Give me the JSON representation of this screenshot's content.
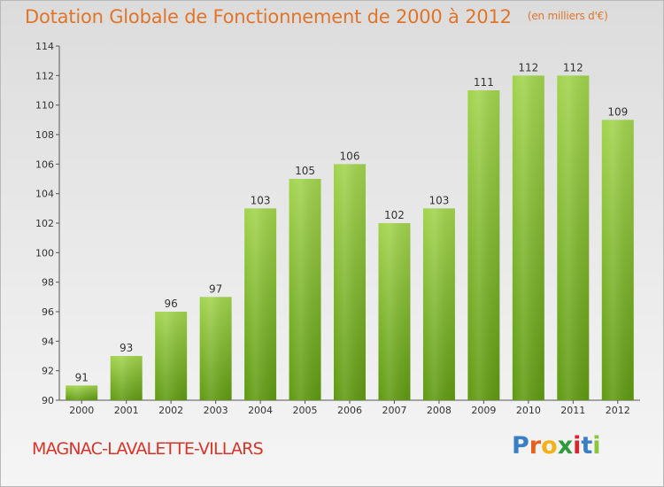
{
  "header": {
    "title": "Dotation Globale de Fonctionnement de 2000 à 2012",
    "unit": "(en milliers d'€)"
  },
  "footer": {
    "place": "MAGNAC-LAVALETTE-VILLARS",
    "brand_letters": [
      "P",
      "r",
      "o",
      "x",
      "i",
      "t",
      "i"
    ],
    "brand_colors": [
      "#3a7fc4",
      "#e8601c",
      "#f2b21a",
      "#2e9a3d",
      "#d6262f",
      "#3a7fc4",
      "#8cc43c"
    ]
  },
  "colors": {
    "bar_light": "#a2d44e",
    "bar_dark": "#5f9a12",
    "title": "#e0752a",
    "place": "#d7342a"
  },
  "chart_data": {
    "type": "bar",
    "title": "Dotation Globale de Fonctionnement de 2000 à 2012",
    "ylabel": "(en milliers d'€)",
    "xlabel": "",
    "categories": [
      "2000",
      "2001",
      "2002",
      "2003",
      "2004",
      "2005",
      "2006",
      "2007",
      "2008",
      "2009",
      "2010",
      "2011",
      "2012"
    ],
    "values": [
      91,
      93,
      96,
      97,
      103,
      105,
      106,
      102,
      103,
      111,
      112,
      112,
      109
    ],
    "ylim": [
      90,
      114
    ],
    "yticks": [
      "90",
      "92",
      "94",
      "96",
      "98",
      "100",
      "102",
      "104",
      "106",
      "108",
      "110",
      "112",
      "114"
    ],
    "grid": false,
    "legend": "none"
  }
}
